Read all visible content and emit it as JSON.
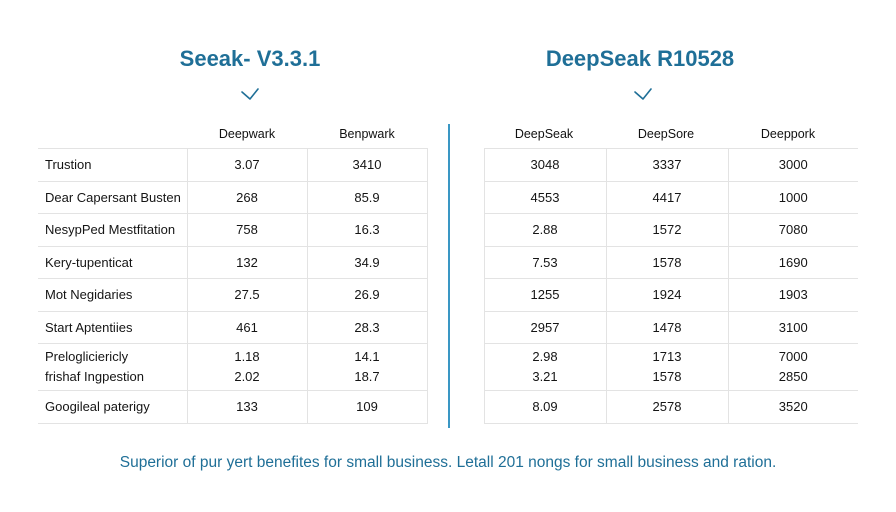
{
  "titles": {
    "left": "Seeak- V3.3.1",
    "right": "DeepSeak R10528"
  },
  "icons": {
    "left_check": "checkmark-icon",
    "right_check": "checkmark-icon"
  },
  "colors": {
    "accent": "#1f6f97",
    "divider": "#3a97c4"
  },
  "headers": [
    "Deepwark",
    "Benpwark",
    "DeepSeak",
    "DeepSore",
    "Deeppork"
  ],
  "rows": [
    {
      "label": "Trustion",
      "values": [
        "3.07",
        "3410",
        "3048",
        "3337",
        "3000"
      ]
    },
    {
      "label": "Dear Capersant Busten",
      "values": [
        "268",
        "85.9",
        "4553",
        "4417",
        "1000"
      ]
    },
    {
      "label": "NesypPed Mestfitation",
      "values": [
        "758",
        "16.3",
        "2.88",
        "1572",
        "7080"
      ]
    },
    {
      "label": "Kery-tupenticat",
      "values": [
        "132",
        "34.9",
        "7.53",
        "1578",
        "1690"
      ]
    },
    {
      "label": "Mot Negidaries",
      "values": [
        "27.5",
        "26.9",
        "1255",
        "1924",
        "1903"
      ]
    },
    {
      "label": "Start Aptentiies",
      "values": [
        "461",
        "28.3",
        "2957",
        "1478",
        "3100"
      ]
    },
    {
      "label": "Prelogliciericly",
      "label2": "frishaf Ingpestion",
      "values": [
        "1.18",
        "14.1",
        "2.98",
        "1713",
        "7000"
      ],
      "values2": [
        "2.02",
        "18.7",
        "3.21",
        "1578",
        "2850"
      ]
    },
    {
      "label": "Googileal paterigy",
      "values": [
        "133",
        "109",
        "8.09",
        "2578",
        "3520"
      ]
    }
  ],
  "caption": "Superior of pur yert benefites for small business. Letall 201 nongs for small business and ration."
}
